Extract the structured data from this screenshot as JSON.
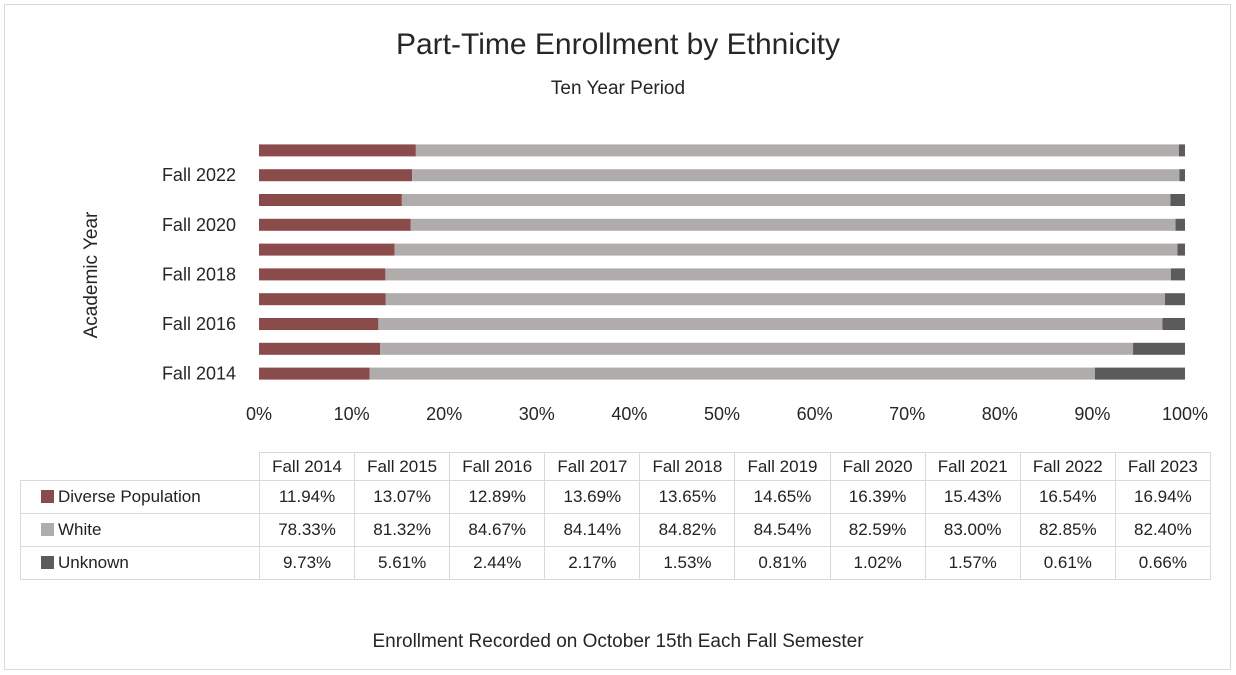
{
  "chart_data": {
    "type": "bar",
    "orientation": "horizontal",
    "stacked": "percent",
    "title": "Part-Time Enrollment by Ethnicity",
    "subtitle": "Ten Year Period",
    "ylabel": "Academic Year",
    "footer": "Enrollment Recorded on October 15th Each Fall Semester",
    "categories": [
      "Fall 2014",
      "Fall 2015",
      "Fall 2016",
      "Fall 2017",
      "Fall 2018",
      "Fall 2019",
      "Fall 2020",
      "Fall 2021",
      "Fall 2022",
      "Fall 2023"
    ],
    "y_tick_labels": [
      "Fall 2014",
      "Fall 2016",
      "Fall 2018",
      "Fall 2020",
      "Fall 2022"
    ],
    "x_tick_labels": [
      "0%",
      "10%",
      "20%",
      "30%",
      "40%",
      "50%",
      "60%",
      "70%",
      "80%",
      "90%",
      "100%"
    ],
    "xlim": [
      0,
      100
    ],
    "series": [
      {
        "name": "Diverse Population",
        "color": "#8a4b4b",
        "values": [
          11.94,
          13.07,
          12.89,
          13.69,
          13.65,
          14.65,
          16.39,
          15.43,
          16.54,
          16.94
        ],
        "labels": [
          "11.94%",
          "13.07%",
          "12.89%",
          "13.69%",
          "13.65%",
          "14.65%",
          "16.39%",
          "15.43%",
          "16.54%",
          "16.94%"
        ]
      },
      {
        "name": "White",
        "color": "#b0acab",
        "values": [
          78.33,
          81.32,
          84.67,
          84.14,
          84.82,
          84.54,
          82.59,
          83.0,
          82.85,
          82.4
        ],
        "labels": [
          "78.33%",
          "81.32%",
          "84.67%",
          "84.14%",
          "84.82%",
          "84.54%",
          "82.59%",
          "83.00%",
          "82.85%",
          "82.40%"
        ]
      },
      {
        "name": "Unknown",
        "color": "#5b5b5b",
        "values": [
          9.73,
          5.61,
          2.44,
          2.17,
          1.53,
          0.81,
          1.02,
          1.57,
          0.61,
          0.66
        ],
        "labels": [
          "9.73%",
          "5.61%",
          "2.44%",
          "2.17%",
          "1.53%",
          "0.81%",
          "1.02%",
          "1.57%",
          "0.61%",
          "0.66%"
        ]
      }
    ],
    "grid": false,
    "legend": "data-table"
  }
}
